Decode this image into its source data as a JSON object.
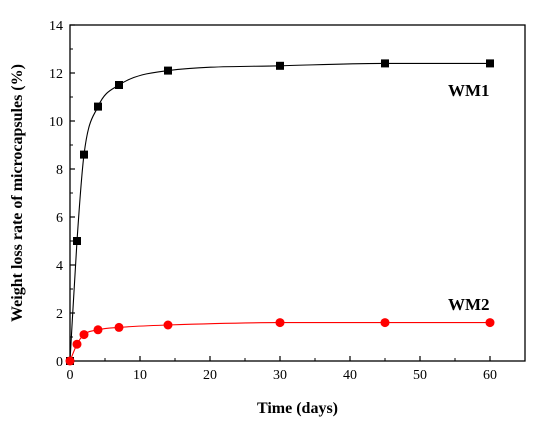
{
  "chart_data": {
    "type": "scatter",
    "xlabel": "Time (days)",
    "ylabel": "Weight loss rate of microcapsules (%)",
    "xlim": [
      0,
      65
    ],
    "ylim": [
      0,
      14
    ],
    "x_ticks": [
      0,
      10,
      20,
      30,
      40,
      50,
      60
    ],
    "y_ticks": [
      0,
      2,
      4,
      6,
      8,
      10,
      12,
      14
    ],
    "grid": false,
    "series": [
      {
        "name": "WM1",
        "marker": "square",
        "color": "#000000",
        "x": [
          0,
          1,
          2,
          4,
          7,
          14,
          30,
          45,
          60
        ],
        "y": [
          0,
          5.0,
          8.6,
          10.6,
          11.5,
          12.1,
          12.3,
          12.4,
          12.4
        ]
      },
      {
        "name": "WM2",
        "marker": "circle",
        "color": "#ff0000",
        "x": [
          0,
          1,
          2,
          4,
          7,
          14,
          30,
          45,
          60
        ],
        "y": [
          0,
          0.7,
          1.1,
          1.3,
          1.4,
          1.5,
          1.6,
          1.6,
          1.6
        ]
      }
    ]
  }
}
